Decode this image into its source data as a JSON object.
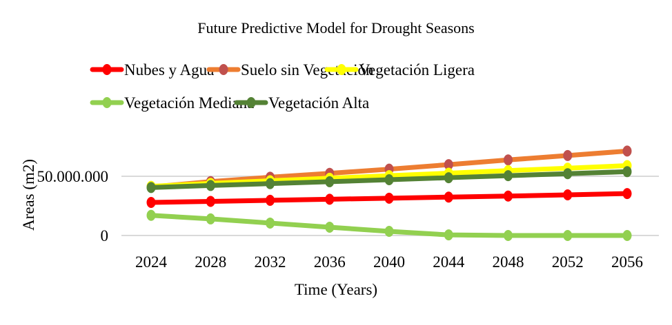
{
  "chart_data": {
    "type": "line",
    "title": "Future Predictive Model for Drought Seasons",
    "xlabel": "Time (Years)",
    "ylabel": "Areas (m2)",
    "x": [
      "2024",
      "2028",
      "2032",
      "2036",
      "2040",
      "2044",
      "2048",
      "2052",
      "2056"
    ],
    "ylim": [
      0,
      75000000
    ],
    "yticks": [
      0,
      50000000
    ],
    "ytick_labels": [
      "0",
      "50.000.000"
    ],
    "grid": true,
    "legend_position": "top",
    "series": [
      {
        "name": "Nubes y Agua",
        "color": "#ff0000",
        "marker_color": "#ff0000",
        "values": [
          27900000,
          28800000,
          29700000,
          30600000,
          31500000,
          32400000,
          33300000,
          34300000,
          35400000
        ]
      },
      {
        "name": "Suelo sin Vegetación",
        "color": "#ed7d31",
        "marker_color": "#c0504d",
        "values": [
          41000000,
          45500000,
          49200000,
          52500000,
          56000000,
          59800000,
          63800000,
          67500000,
          71300000
        ]
      },
      {
        "name": "Vegetación Ligera",
        "color": "#ffff00",
        "marker_color": "#ffff00",
        "values": [
          41500000,
          44000000,
          46200000,
          48300000,
          50500000,
          52600000,
          54800000,
          56800000,
          59000000
        ]
      },
      {
        "name": "Vegetación Mediana",
        "color": "#92d050",
        "marker_color": "#92d050",
        "values": [
          17000000,
          14000000,
          10500000,
          7000000,
          3500000,
          500000,
          0,
          0,
          0
        ]
      },
      {
        "name": "Vegetación Alta",
        "color": "#548235",
        "marker_color": "#548235",
        "values": [
          40500000,
          42200000,
          43800000,
          45400000,
          47100000,
          48800000,
          50500000,
          52200000,
          53900000
        ]
      }
    ]
  }
}
